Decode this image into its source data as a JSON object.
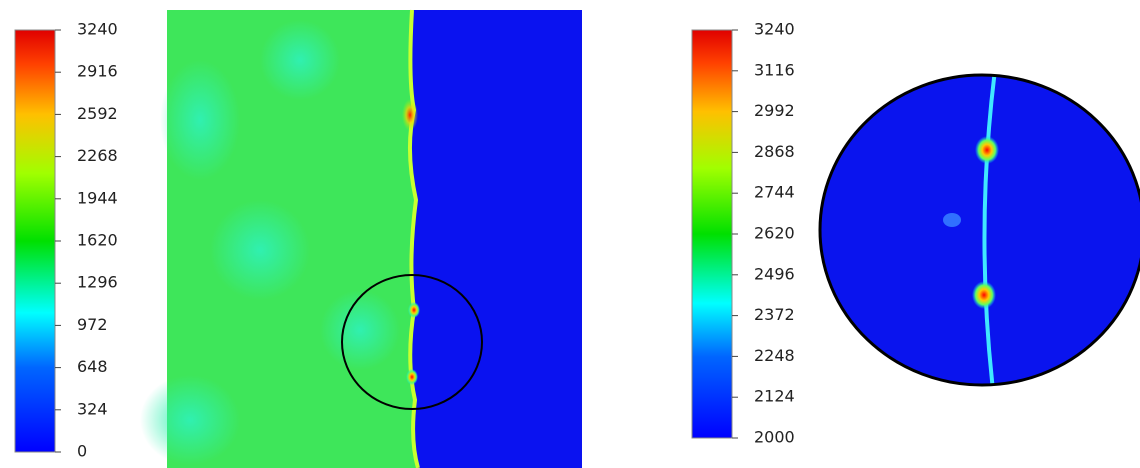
{
  "chart_data": [
    {
      "type": "heatmap",
      "ylim": [
        0,
        3240
      ],
      "yticks": [
        0,
        324,
        648,
        972,
        1296,
        1620,
        1944,
        2268,
        2592,
        2916,
        3240
      ]
    },
    {
      "type": "heatmap",
      "ylim": [
        2000,
        3240
      ],
      "yticks": [
        2000,
        2124,
        2248,
        2372,
        2496,
        2620,
        2744,
        2868,
        2992,
        3116,
        3240
      ]
    }
  ]
}
